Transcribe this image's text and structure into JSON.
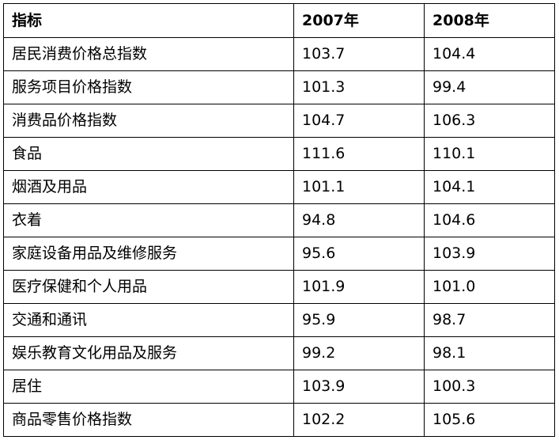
{
  "table": {
    "headers": [
      "指标",
      "2007年",
      "2008年"
    ],
    "rows": [
      [
        "居民消费价格总指数",
        "103.7",
        "104.4"
      ],
      [
        "服务项目价格指数",
        "101.3",
        "99.4"
      ],
      [
        "消费品价格指数",
        "104.7",
        "106.3"
      ],
      [
        "食品",
        "111.6",
        "110.1"
      ],
      [
        "烟酒及用品",
        "101.1",
        "104.1"
      ],
      [
        "衣着",
        "94.8",
        "104.6"
      ],
      [
        "家庭设备用品及维修服务",
        "95.6",
        "103.9"
      ],
      [
        "医疗保健和个人用品",
        "101.9",
        "101.0"
      ],
      [
        "交通和通讯",
        "95.9",
        "98.7"
      ],
      [
        "娱乐教育文化用品及服务",
        "99.2",
        "98.1"
      ],
      [
        "居住",
        "103.9",
        "100.3"
      ],
      [
        "商品零售价格指数",
        "102.2",
        "105.6"
      ]
    ]
  }
}
